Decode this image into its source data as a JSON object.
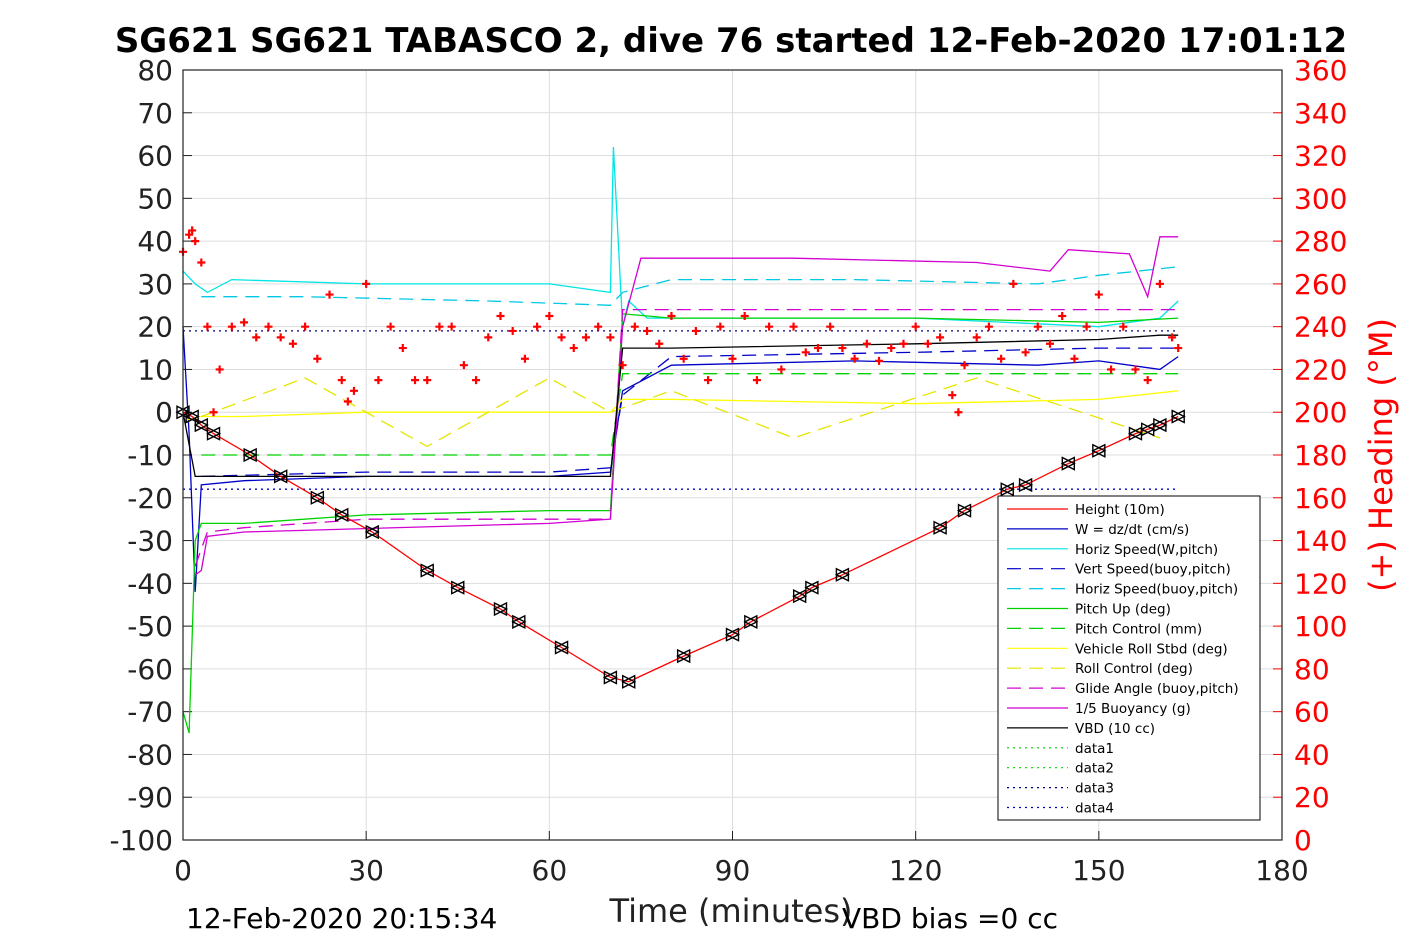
{
  "chart_data": {
    "type": "line",
    "title": "SG621 SG621 TABASCO 2, dive 76 started 12-Feb-2020 17:01:12",
    "xlabel": "Time (minutes)",
    "ylabel_right": "(+) Heading (°M)",
    "xlim": [
      0,
      180
    ],
    "ylim": [
      -100,
      80
    ],
    "ylim_right": [
      0,
      360
    ],
    "xticks": [
      0,
      30,
      60,
      90,
      120,
      150,
      180
    ],
    "yticks": [
      -100,
      -90,
      -80,
      -70,
      -60,
      -50,
      -40,
      -30,
      -20,
      -10,
      0,
      10,
      20,
      30,
      40,
      50,
      60,
      70,
      80
    ],
    "yticks_right": [
      0,
      20,
      40,
      60,
      80,
      100,
      120,
      140,
      160,
      180,
      200,
      220,
      240,
      260,
      280,
      300,
      320,
      340,
      360
    ],
    "grid": true,
    "legend_position": "lower-right",
    "footer_left": "12-Feb-2020 20:15:34",
    "footer_right": "VBD bias =0 cc",
    "colors": {
      "height": "#ff0000",
      "w": "#0000c8",
      "horiz_w": "#00e5e5",
      "vert_buoy": "#0000c8",
      "horiz_buoy": "#00c8e5",
      "pitch": "#00d200",
      "pitch_ctrl": "#00d200",
      "roll": "#ffff00",
      "roll_ctrl": "#e5e500",
      "glide": "#d200d2",
      "buoy": "#d200d2",
      "vbd": "#000000",
      "heading": "#ff0000"
    },
    "series": [
      {
        "name": "Height (10m)",
        "style": "solid",
        "color": "#ff0000",
        "marker": "triangle",
        "x": [
          0,
          1.5,
          3,
          5,
          11,
          16,
          22,
          26,
          31,
          40,
          45,
          52,
          55,
          62,
          70,
          73,
          82,
          90,
          93,
          101,
          103,
          108,
          124,
          128,
          135,
          138,
          145,
          150,
          156,
          158,
          160,
          163
        ],
        "y": [
          0,
          -1,
          -3,
          -5,
          -10,
          -15,
          -20,
          -24,
          -28,
          -37,
          -41,
          -46,
          -49,
          -55,
          -62,
          -63,
          -57,
          -52,
          -49,
          -43,
          -41,
          -38,
          -27,
          -23,
          -18,
          -17,
          -12,
          -9,
          -5,
          -4,
          -3,
          -1
        ]
      },
      {
        "name": "W = dz/dt (cm/s)",
        "style": "solid",
        "color": "#0000c8",
        "x": [
          0,
          1,
          2,
          3,
          10,
          30,
          60,
          70,
          72,
          80,
          110,
          140,
          150,
          160,
          163
        ],
        "y": [
          20,
          -5,
          -42,
          -17,
          -16,
          -15,
          -15,
          -14,
          5,
          11,
          12,
          11,
          12,
          10,
          13
        ]
      },
      {
        "name": "Horiz Speed(W,pitch)",
        "style": "solid",
        "color": "#00e5e5",
        "x": [
          0,
          2,
          4,
          8,
          30,
          60,
          70,
          70.5,
          71,
          72,
          73,
          76,
          80,
          120,
          150,
          160,
          163
        ],
        "y": [
          33,
          30,
          28,
          31,
          30,
          30,
          28,
          62,
          48,
          20,
          26,
          22,
          22,
          22,
          20,
          22,
          26
        ]
      },
      {
        "name": "Vert Speed(buoy,pitch)",
        "style": "dashed",
        "color": "#0000c8",
        "x": [
          3,
          30,
          60,
          70,
          72,
          80,
          120,
          150,
          163
        ],
        "y": [
          -15,
          -14,
          -14,
          -13,
          4,
          13,
          14,
          15,
          15
        ]
      },
      {
        "name": "Horiz Speed(buoy,pitch)",
        "style": "dashed",
        "color": "#00c8e5",
        "x": [
          3,
          20,
          50,
          70,
          72,
          80,
          110,
          140,
          150,
          163
        ],
        "y": [
          27,
          27,
          26,
          25,
          28,
          31,
          31,
          30,
          32,
          34
        ]
      },
      {
        "name": "Pitch Up (deg)",
        "style": "solid",
        "color": "#00d200",
        "x": [
          0,
          1,
          2,
          3,
          10,
          30,
          60,
          70,
          72,
          80,
          120,
          150,
          163
        ],
        "y": [
          -70,
          -75,
          -30,
          -26,
          -26,
          -24,
          -23,
          -23,
          23,
          22,
          22,
          21,
          22
        ]
      },
      {
        "name": "Pitch Control (mm)",
        "style": "dashed",
        "color": "#00d200",
        "x": [
          3,
          70,
          72,
          163
        ],
        "y": [
          -10,
          -10,
          9,
          9
        ]
      },
      {
        "name": "Vehicle Roll Stbd (deg)",
        "style": "solid",
        "color": "#ffff00",
        "x": [
          0,
          3,
          10,
          30,
          60,
          70,
          72,
          80,
          120,
          150,
          163
        ],
        "y": [
          -2,
          -1,
          -1,
          0,
          0,
          0,
          3,
          3,
          2,
          3,
          5
        ]
      },
      {
        "name": "Roll Control (deg)",
        "style": "dashed",
        "color": "#e5e500",
        "x": [
          3,
          20,
          40,
          60,
          70,
          80,
          100,
          130,
          160
        ],
        "y": [
          -1,
          8,
          -8,
          8,
          0,
          5,
          -6,
          8,
          -6
        ]
      },
      {
        "name": "Glide Angle (buoy,pitch)",
        "style": "dashed",
        "color": "#d200d2",
        "x": [
          2,
          4,
          10,
          30,
          60,
          70,
          72,
          80,
          120,
          150,
          163
        ],
        "y": [
          -36,
          -28,
          -27,
          -25,
          -25,
          -25,
          24,
          24,
          24,
          24,
          24
        ]
      },
      {
        "name": "1/5 Buoyancy (g)",
        "style": "solid",
        "color": "#d200d2",
        "x": [
          2,
          3,
          4,
          10,
          60,
          70,
          72,
          75,
          100,
          130,
          142,
          145,
          155,
          158,
          160,
          163
        ],
        "y": [
          -38,
          -37,
          -29,
          -28,
          -26,
          -25,
          20,
          36,
          36,
          35,
          33,
          38,
          37,
          27,
          41,
          41
        ]
      },
      {
        "name": "VBD (10 cc)",
        "style": "solid",
        "color": "#000000",
        "x": [
          0,
          2,
          4,
          10,
          60,
          70,
          72,
          80,
          120,
          150,
          160,
          163
        ],
        "y": [
          0,
          -15,
          -15,
          -15,
          -15,
          -15,
          15,
          15,
          16,
          17,
          18,
          18
        ]
      },
      {
        "name": "data1",
        "style": "dotted",
        "color": "#00d200",
        "x": [],
        "y": []
      },
      {
        "name": "data2",
        "style": "dotted",
        "color": "#00d200",
        "x": [],
        "y": []
      },
      {
        "name": "data3",
        "style": "dotted",
        "color": "#000080",
        "x": [
          0,
          163
        ],
        "y": [
          19,
          19
        ]
      },
      {
        "name": "data4",
        "style": "dotted",
        "color": "#0000c8",
        "x": [
          0,
          163
        ],
        "y": [
          -18,
          -18
        ]
      }
    ],
    "heading_series": {
      "axis": "right",
      "color": "#ff0000",
      "marker": "plus",
      "x": [
        0,
        1,
        1.5,
        2,
        3,
        4,
        5,
        6,
        8,
        10,
        12,
        14,
        16,
        18,
        20,
        22,
        24,
        26,
        27,
        28,
        30,
        32,
        34,
        36,
        38,
        40,
        42,
        44,
        46,
        48,
        50,
        52,
        54,
        56,
        58,
        60,
        62,
        64,
        66,
        68,
        70,
        72,
        74,
        76,
        78,
        80,
        82,
        84,
        86,
        88,
        90,
        92,
        94,
        96,
        98,
        100,
        102,
        104,
        106,
        108,
        110,
        112,
        114,
        116,
        118,
        120,
        122,
        124,
        126,
        127,
        128,
        130,
        132,
        134,
        136,
        138,
        140,
        142,
        144,
        146,
        148,
        150,
        152,
        154,
        156,
        158,
        160,
        162,
        163
      ],
      "y": [
        275,
        283,
        285,
        280,
        270,
        240,
        200,
        220,
        240,
        242,
        235,
        240,
        235,
        232,
        240,
        225,
        255,
        215,
        205,
        210,
        260,
        215,
        240,
        230,
        215,
        215,
        240,
        240,
        222,
        215,
        235,
        245,
        238,
        225,
        240,
        245,
        235,
        230,
        235,
        240,
        235,
        222,
        240,
        238,
        232,
        245,
        225,
        238,
        215,
        240,
        225,
        245,
        215,
        240,
        220,
        240,
        228,
        230,
        240,
        230,
        225,
        232,
        224,
        230,
        232,
        240,
        232,
        235,
        208,
        200,
        222,
        235,
        240,
        225,
        260,
        228,
        240,
        232,
        245,
        225,
        240,
        255,
        220,
        240,
        220,
        215,
        260,
        235,
        230
      ]
    }
  }
}
